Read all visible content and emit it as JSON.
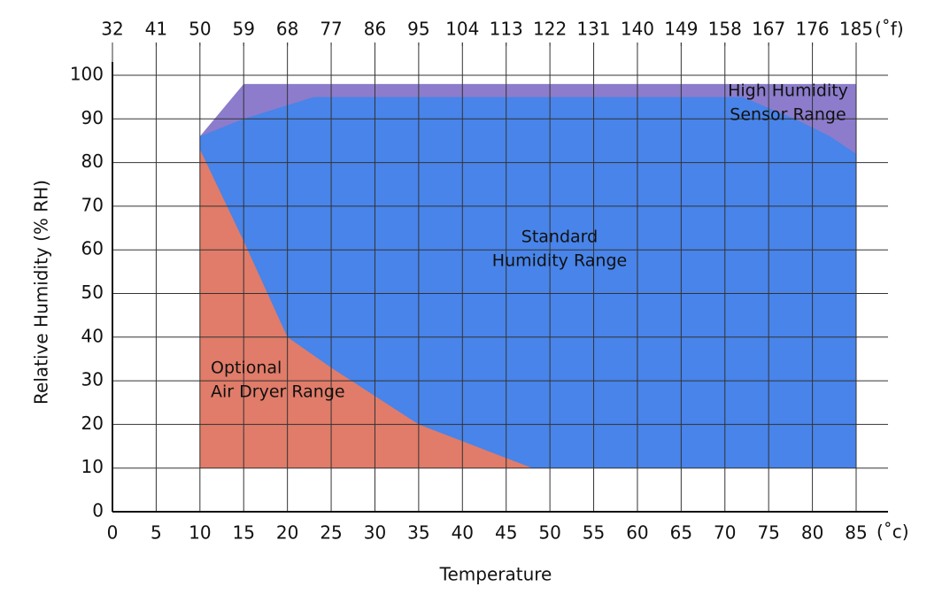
{
  "chart_data": {
    "type": "area",
    "x_label": "Temperature",
    "y_label": "Relative Humidity (% RH)",
    "x_unit": "(˚c)",
    "x2_unit": "(˚f)",
    "xlim": [
      0,
      85
    ],
    "xticks": [
      0,
      5,
      10,
      15,
      20,
      25,
      30,
      35,
      40,
      45,
      50,
      55,
      60,
      65,
      70,
      75,
      80,
      85
    ],
    "x2ticks": [
      {
        "value": 0,
        "label": "32"
      },
      {
        "value": 5,
        "label": "41"
      },
      {
        "value": 10,
        "label": "50"
      },
      {
        "value": 15,
        "label": "59"
      },
      {
        "value": 20,
        "label": "68"
      },
      {
        "value": 25,
        "label": "77"
      },
      {
        "value": 30,
        "label": "86"
      },
      {
        "value": 35,
        "label": "95"
      },
      {
        "value": 40,
        "label": "104"
      },
      {
        "value": 45,
        "label": "113"
      },
      {
        "value": 50,
        "label": "122"
      },
      {
        "value": 55,
        "label": "131"
      },
      {
        "value": 60,
        "label": "140"
      },
      {
        "value": 65,
        "label": "149"
      },
      {
        "value": 70,
        "label": "158"
      },
      {
        "value": 75,
        "label": "167"
      },
      {
        "value": 80,
        "label": "176"
      },
      {
        "value": 85,
        "label": "185"
      }
    ],
    "ylim": [
      0,
      100
    ],
    "yticks": [
      0,
      10,
      20,
      30,
      40,
      50,
      60,
      70,
      80,
      90,
      100
    ],
    "grid": true,
    "series": [
      {
        "label": [
          "High Humidity",
          "Sensor Range"
        ],
        "color": "#8c7ccb",
        "x": [
          10,
          15,
          85,
          85
        ],
        "values": [
          86,
          98,
          98,
          82
        ]
      },
      {
        "label": [
          "Standard",
          "Humidity Range"
        ],
        "color": "#4884e9",
        "x": [
          10,
          10,
          15,
          23,
          72,
          78,
          82,
          85,
          85
        ],
        "values": [
          10,
          86,
          90,
          95,
          95,
          90,
          86,
          82,
          10
        ]
      },
      {
        "label": [
          "Optional",
          "Air Dryer Range"
        ],
        "color": "#e07c69",
        "x": [
          10,
          10,
          15,
          20,
          25,
          35,
          48
        ],
        "values": [
          10,
          83,
          62,
          40,
          33,
          20,
          10
        ]
      }
    ]
  }
}
